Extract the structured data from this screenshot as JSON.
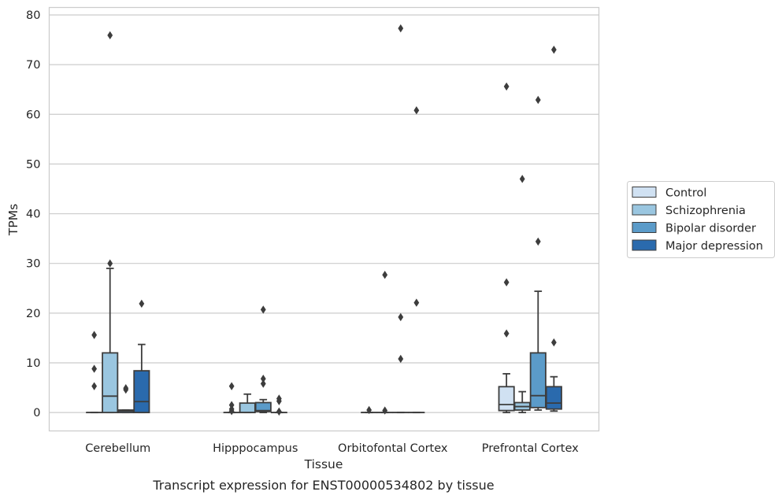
{
  "chart_data": {
    "type": "boxplot",
    "title": "",
    "caption": "Transcript expression for ENST00000534802 by tissue",
    "xlabel": "Tissue",
    "ylabel": "TPMs",
    "ylim": [
      -3.7,
      81.5
    ],
    "yticks": [
      0,
      10,
      20,
      30,
      40,
      50,
      60,
      70,
      80
    ],
    "grid": "horizontal",
    "legend_position": "right",
    "categories": [
      "Cerebellum",
      "Hipppocampus",
      "Orbitofontal Cortex",
      "Prefrontal Cortex"
    ],
    "series": [
      {
        "name": "Control",
        "color": "#d0e1f2",
        "boxes": [
          {
            "q1": 0,
            "median": 0,
            "q3": 0,
            "whislo": 0,
            "whishi": 0,
            "fliers": [
              5.3,
              8.8,
              15.6
            ]
          },
          {
            "q1": 0,
            "median": 0,
            "q3": 0,
            "whislo": 0,
            "whishi": 0,
            "fliers": [
              0.3,
              0.7,
              1.5,
              5.3
            ]
          },
          {
            "q1": 0,
            "median": 0,
            "q3": 0,
            "whislo": 0,
            "whishi": 0,
            "fliers": [
              0.5
            ]
          },
          {
            "q1": 0.4,
            "median": 1.6,
            "q3": 5.2,
            "whislo": 0,
            "whishi": 7.8,
            "fliers": [
              15.9,
              26.2,
              65.6
            ]
          }
        ]
      },
      {
        "name": "Schizophrenia",
        "color": "#9ac6e0",
        "boxes": [
          {
            "q1": 0,
            "median": 3.3,
            "q3": 12,
            "whislo": 0,
            "whishi": 29,
            "fliers": [
              30,
              75.9
            ]
          },
          {
            "q1": 0,
            "median": 0,
            "q3": 1.9,
            "whislo": 0,
            "whishi": 3.7,
            "fliers": []
          },
          {
            "q1": 0,
            "median": 0,
            "q3": 0,
            "whislo": 0,
            "whishi": 0,
            "fliers": [
              0.4,
              27.7
            ]
          },
          {
            "q1": 0.5,
            "median": 1.2,
            "q3": 2,
            "whislo": 0,
            "whishi": 4.2,
            "fliers": [
              47
            ]
          }
        ]
      },
      {
        "name": "Bipolar disorder",
        "color": "#5b9bc9",
        "boxes": [
          {
            "q1": 0,
            "median": 0.3,
            "q3": 0.5,
            "whislo": 0,
            "whishi": 0.5,
            "fliers": [
              4.6,
              4.9
            ]
          },
          {
            "q1": 0.2,
            "median": 0.4,
            "q3": 2,
            "whislo": 0,
            "whishi": 2.6,
            "fliers": [
              5.8,
              6.8,
              20.7
            ]
          },
          {
            "q1": 0,
            "median": 0,
            "q3": 0,
            "whislo": 0,
            "whishi": 0,
            "fliers": [
              10.8,
              19.2,
              77.3
            ]
          },
          {
            "q1": 1,
            "median": 3.4,
            "q3": 12,
            "whislo": 0.5,
            "whishi": 24.4,
            "fliers": [
              34.4,
              62.9
            ]
          }
        ]
      },
      {
        "name": "Major depression",
        "color": "#2a6aad",
        "boxes": [
          {
            "q1": 0,
            "median": 2.2,
            "q3": 8.4,
            "whislo": 0,
            "whishi": 13.7,
            "fliers": [
              21.9
            ]
          },
          {
            "q1": 0,
            "median": 0,
            "q3": 0,
            "whislo": 0,
            "whishi": 0,
            "fliers": [
              0.2,
              2.3,
              2.8
            ]
          },
          {
            "q1": 0,
            "median": 0,
            "q3": 0,
            "whislo": 0,
            "whishi": 0,
            "fliers": [
              22.1,
              60.8
            ]
          },
          {
            "q1": 0.7,
            "median": 1.9,
            "q3": 5.2,
            "whislo": 0.3,
            "whishi": 7.2,
            "fliers": [
              14.1,
              73
            ]
          }
        ]
      }
    ]
  }
}
